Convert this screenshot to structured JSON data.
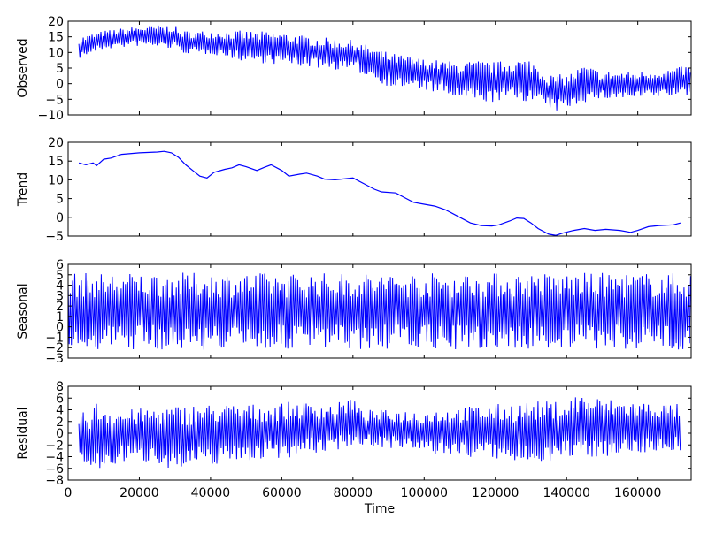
{
  "chart_data": {
    "type": "line",
    "title": "",
    "xlabel": "Time",
    "xlim": [
      0,
      175000
    ],
    "x_ticks": [
      0,
      20000,
      40000,
      60000,
      80000,
      100000,
      120000,
      140000,
      160000
    ],
    "line_color": "#0000ff",
    "grid": false,
    "legend": "none",
    "panels": [
      {
        "ylabel": "Observed",
        "ylim": [
          -10,
          20
        ],
        "y_ticks": [
          -10,
          -5,
          0,
          5,
          10,
          15,
          20
        ],
        "x_range": [
          3000,
          175000
        ],
        "oscillating": true,
        "upper": [
          [
            3000,
            15
          ],
          [
            10000,
            17
          ],
          [
            20000,
            18.5
          ],
          [
            30000,
            19
          ],
          [
            31000,
            17
          ],
          [
            40000,
            17
          ],
          [
            50000,
            17
          ],
          [
            60000,
            16.5
          ],
          [
            70000,
            15
          ],
          [
            80000,
            14
          ],
          [
            85000,
            12
          ],
          [
            90000,
            10
          ],
          [
            100000,
            8
          ],
          [
            110000,
            7
          ],
          [
            115000,
            7.5
          ],
          [
            120000,
            7
          ],
          [
            125000,
            8
          ],
          [
            130000,
            8
          ],
          [
            135000,
            3
          ],
          [
            140000,
            3
          ],
          [
            145000,
            6
          ],
          [
            150000,
            4
          ],
          [
            160000,
            4
          ],
          [
            170000,
            5
          ],
          [
            175000,
            6
          ]
        ],
        "lower": [
          [
            3000,
            8
          ],
          [
            10000,
            11
          ],
          [
            20000,
            12
          ],
          [
            30000,
            11
          ],
          [
            31000,
            10
          ],
          [
            37000,
            9
          ],
          [
            40000,
            9.5
          ],
          [
            50000,
            7
          ],
          [
            60000,
            6
          ],
          [
            70000,
            5
          ],
          [
            80000,
            4
          ],
          [
            85000,
            2
          ],
          [
            90000,
            -1
          ],
          [
            100000,
            -2
          ],
          [
            110000,
            -5
          ],
          [
            115000,
            -6
          ],
          [
            120000,
            -6
          ],
          [
            125000,
            -5
          ],
          [
            130000,
            -6
          ],
          [
            135000,
            -8
          ],
          [
            137000,
            -9
          ],
          [
            140000,
            -8
          ],
          [
            145000,
            -6
          ],
          [
            150000,
            -5
          ],
          [
            160000,
            -5
          ],
          [
            170000,
            -4
          ],
          [
            175000,
            -4
          ]
        ]
      },
      {
        "ylabel": "Trend",
        "ylim": [
          -5,
          20
        ],
        "y_ticks": [
          -5,
          0,
          5,
          10,
          15,
          20
        ],
        "x_range": [
          3000,
          172000
        ],
        "oscillating": false,
        "curve": [
          [
            3000,
            14.5
          ],
          [
            5000,
            14
          ],
          [
            7000,
            14.5
          ],
          [
            8000,
            13.8
          ],
          [
            10000,
            15.5
          ],
          [
            12000,
            15.8
          ],
          [
            15000,
            16.8
          ],
          [
            20000,
            17.2
          ],
          [
            25000,
            17.4
          ],
          [
            27000,
            17.6
          ],
          [
            29000,
            17.2
          ],
          [
            31000,
            16
          ],
          [
            33000,
            14
          ],
          [
            35000,
            12.5
          ],
          [
            37000,
            11
          ],
          [
            39000,
            10.5
          ],
          [
            41000,
            12
          ],
          [
            44000,
            12.8
          ],
          [
            46000,
            13.2
          ],
          [
            48000,
            14
          ],
          [
            50000,
            13.5
          ],
          [
            53000,
            12.5
          ],
          [
            55000,
            13.3
          ],
          [
            57000,
            14
          ],
          [
            60000,
            12.5
          ],
          [
            62000,
            11
          ],
          [
            65000,
            11.5
          ],
          [
            67000,
            11.8
          ],
          [
            70000,
            11
          ],
          [
            72000,
            10.2
          ],
          [
            75000,
            10
          ],
          [
            78000,
            10.3
          ],
          [
            80000,
            10.5
          ],
          [
            83000,
            9
          ],
          [
            86000,
            7.5
          ],
          [
            88000,
            6.8
          ],
          [
            92000,
            6.5
          ],
          [
            95000,
            5
          ],
          [
            97000,
            4
          ],
          [
            100000,
            3.5
          ],
          [
            103000,
            3
          ],
          [
            106000,
            2
          ],
          [
            110000,
            0
          ],
          [
            113000,
            -1.5
          ],
          [
            116000,
            -2.2
          ],
          [
            119000,
            -2.3
          ],
          [
            121000,
            -2
          ],
          [
            124000,
            -1
          ],
          [
            126000,
            -0.2
          ],
          [
            128000,
            -0.3
          ],
          [
            130000,
            -1.5
          ],
          [
            132000,
            -3
          ],
          [
            135000,
            -4.5
          ],
          [
            137000,
            -4.8
          ],
          [
            139000,
            -4.2
          ],
          [
            142000,
            -3.5
          ],
          [
            145000,
            -3
          ],
          [
            148000,
            -3.5
          ],
          [
            151000,
            -3.2
          ],
          [
            155000,
            -3.5
          ],
          [
            158000,
            -4
          ],
          [
            160000,
            -3.5
          ],
          [
            163000,
            -2.5
          ],
          [
            166000,
            -2.2
          ],
          [
            170000,
            -2
          ],
          [
            172000,
            -1.5
          ]
        ]
      },
      {
        "ylabel": "Seasonal",
        "ylim": [
          -3,
          6
        ],
        "y_ticks": [
          -3,
          -2,
          -1,
          0,
          1,
          2,
          3,
          4,
          5,
          6
        ],
        "x_range": [
          0,
          175000
        ],
        "oscillating": true,
        "upper": [
          [
            0,
            5.2
          ],
          [
            175000,
            5.2
          ]
        ],
        "lower": [
          [
            0,
            -2.2
          ],
          [
            175000,
            -2.2
          ]
        ]
      },
      {
        "ylabel": "Residual",
        "ylim": [
          -8,
          8
        ],
        "y_ticks": [
          -8,
          -6,
          -4,
          -2,
          0,
          2,
          4,
          6,
          8
        ],
        "x_range": [
          3000,
          172000
        ],
        "oscillating": true,
        "upper": [
          [
            3000,
            3
          ],
          [
            8000,
            5.5
          ],
          [
            15000,
            4
          ],
          [
            25000,
            4.5
          ],
          [
            35000,
            5
          ],
          [
            45000,
            5
          ],
          [
            55000,
            5
          ],
          [
            65000,
            5.5
          ],
          [
            75000,
            5
          ],
          [
            80000,
            6.5
          ],
          [
            82000,
            4
          ],
          [
            90000,
            4
          ],
          [
            100000,
            4
          ],
          [
            110000,
            4.5
          ],
          [
            120000,
            5
          ],
          [
            130000,
            5.5
          ],
          [
            140000,
            5.5
          ],
          [
            143000,
            7
          ],
          [
            150000,
            6
          ],
          [
            160000,
            5.5
          ],
          [
            172000,
            5
          ]
        ],
        "lower": [
          [
            3000,
            -4
          ],
          [
            6000,
            -7.5
          ],
          [
            15000,
            -5
          ],
          [
            25000,
            -5
          ],
          [
            30000,
            -6.5
          ],
          [
            35000,
            -6
          ],
          [
            45000,
            -5
          ],
          [
            55000,
            -4.5
          ],
          [
            65000,
            -4
          ],
          [
            75000,
            -3
          ],
          [
            80000,
            -2
          ],
          [
            90000,
            -2.5
          ],
          [
            100000,
            -3.5
          ],
          [
            110000,
            -4
          ],
          [
            120000,
            -4.5
          ],
          [
            124000,
            -5.5
          ],
          [
            130000,
            -5
          ],
          [
            140000,
            -4.5
          ],
          [
            150000,
            -4
          ],
          [
            160000,
            -3.5
          ],
          [
            172000,
            -3
          ]
        ]
      }
    ]
  }
}
